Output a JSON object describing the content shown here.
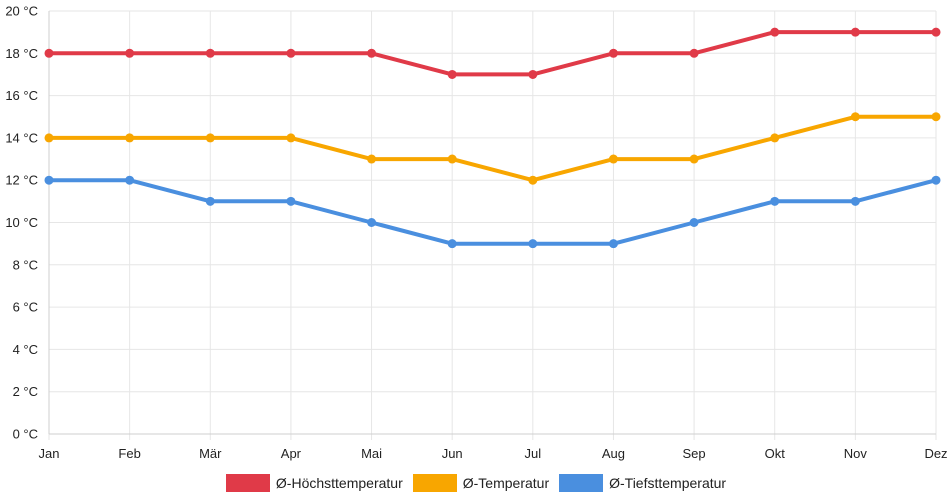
{
  "chart_data": {
    "type": "line",
    "categories": [
      "Jan",
      "Feb",
      "Mär",
      "Apr",
      "Mai",
      "Jun",
      "Jul",
      "Aug",
      "Sep",
      "Okt",
      "Nov",
      "Dez"
    ],
    "y_ticks": [
      "0 °C",
      "2 °C",
      "4 °C",
      "6 °C",
      "8 °C",
      "10 °C",
      "12 °C",
      "14 °C",
      "16 °C",
      "18 °C",
      "20 °C"
    ],
    "ylim": [
      0,
      20
    ],
    "grid": true,
    "legend_position": "bottom",
    "series": [
      {
        "name": "Ø-Höchsttemperatur",
        "color": "#e03a48",
        "values": [
          18,
          18,
          18,
          18,
          18,
          17,
          17,
          18,
          18,
          19,
          19,
          19
        ]
      },
      {
        "name": "Ø-Temperatur",
        "color": "#f8a600",
        "values": [
          14,
          14,
          14,
          14,
          13,
          13,
          12,
          13,
          13,
          14,
          15,
          15
        ]
      },
      {
        "name": "Ø-Tiefsttemperatur",
        "color": "#4a8fdf",
        "values": [
          12,
          12,
          11,
          11,
          10,
          9,
          9,
          9,
          10,
          11,
          11,
          12
        ]
      }
    ]
  }
}
